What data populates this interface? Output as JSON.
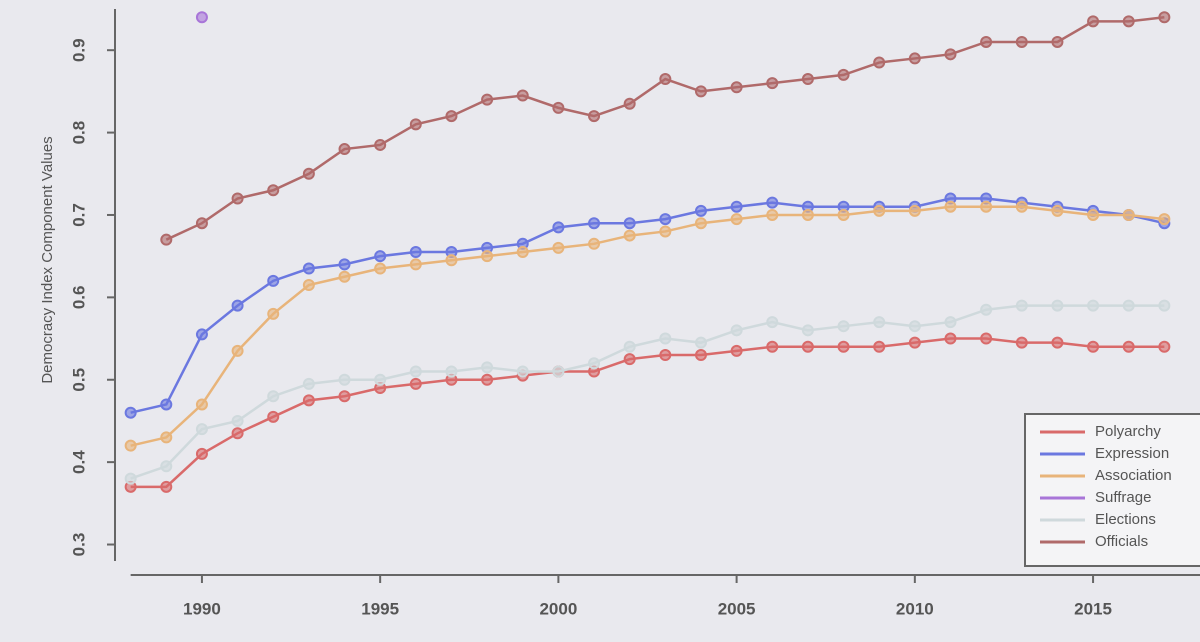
{
  "chart_data": {
    "type": "line",
    "y_label": "Democracy Index Component Values",
    "x": [
      1988,
      1989,
      1990,
      1991,
      1992,
      1993,
      1994,
      1995,
      1996,
      1997,
      1998,
      1999,
      2000,
      2001,
      2002,
      2003,
      2004,
      2005,
      2006,
      2007,
      2008,
      2009,
      2010,
      2011,
      2012,
      2013,
      2014,
      2015,
      2016,
      2017
    ],
    "xlim": [
      1987,
      2018
    ],
    "xticks": [
      1990,
      1995,
      2000,
      2005,
      2010,
      2015
    ],
    "ylim": [
      0.28,
      0.95
    ],
    "yticks": [
      0.3,
      0.4,
      0.5,
      0.6,
      0.7,
      0.8,
      0.9
    ],
    "legend": "lower right",
    "series": [
      {
        "name": "Polyarchy",
        "color": "#d96a6a",
        "values": [
          0.37,
          0.37,
          0.41,
          0.435,
          0.455,
          0.475,
          0.48,
          0.49,
          0.495,
          0.5,
          0.5,
          0.505,
          0.51,
          0.51,
          0.525,
          0.53,
          0.53,
          0.535,
          0.54,
          0.54,
          0.54,
          0.54,
          0.545,
          0.55,
          0.55,
          0.545,
          0.545,
          0.54,
          0.54,
          0.54
        ]
      },
      {
        "name": "Expression",
        "color": "#6b78e0",
        "values": [
          0.46,
          0.47,
          0.555,
          0.59,
          0.62,
          0.635,
          0.64,
          0.65,
          0.655,
          0.655,
          0.66,
          0.665,
          0.685,
          0.69,
          0.69,
          0.695,
          0.705,
          0.71,
          0.715,
          0.71,
          0.71,
          0.71,
          0.71,
          0.72,
          0.72,
          0.715,
          0.71,
          0.705,
          0.7,
          0.69
        ]
      },
      {
        "name": "Association",
        "color": "#e8b47a",
        "values": [
          0.42,
          0.43,
          0.47,
          0.535,
          0.58,
          0.615,
          0.625,
          0.635,
          0.64,
          0.645,
          0.65,
          0.655,
          0.66,
          0.665,
          0.675,
          0.68,
          0.69,
          0.695,
          0.7,
          0.7,
          0.7,
          0.705,
          0.705,
          0.71,
          0.71,
          0.71,
          0.705,
          0.7,
          0.7,
          0.695
        ]
      },
      {
        "name": "Suffrage",
        "color": "#a875d8",
        "values": [
          null,
          null,
          0.94,
          null,
          null,
          null,
          null,
          null,
          null,
          null,
          null,
          null,
          null,
          null,
          null,
          null,
          null,
          null,
          null,
          null,
          null,
          null,
          null,
          null,
          null,
          null,
          null,
          null,
          null,
          null
        ]
      },
      {
        "name": "Elections",
        "color": "#cfd9dc",
        "values": [
          0.38,
          0.395,
          0.44,
          0.45,
          0.48,
          0.495,
          0.5,
          0.5,
          0.51,
          0.51,
          0.515,
          0.51,
          0.51,
          0.52,
          0.54,
          0.55,
          0.545,
          0.56,
          0.57,
          0.56,
          0.565,
          0.57,
          0.565,
          0.57,
          0.585,
          0.59,
          0.59,
          0.59,
          0.59,
          0.59
        ]
      },
      {
        "name": "Officials",
        "color": "#b06a6a",
        "values": [
          null,
          0.67,
          0.69,
          0.72,
          0.73,
          0.75,
          0.78,
          0.785,
          0.81,
          0.82,
          0.84,
          0.845,
          0.83,
          0.82,
          0.835,
          0.865,
          0.85,
          0.855,
          0.86,
          0.865,
          0.87,
          0.885,
          0.89,
          0.895,
          0.91,
          0.91,
          0.91,
          0.935,
          0.935,
          0.94
        ]
      }
    ]
  }
}
